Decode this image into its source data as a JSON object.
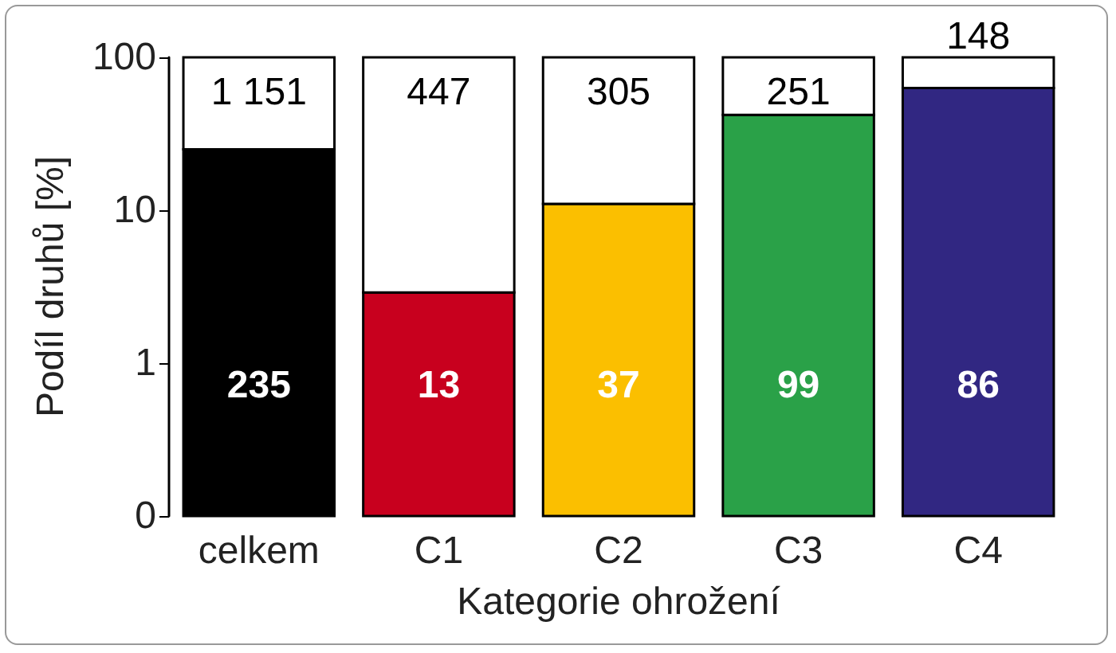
{
  "chart_data": {
    "type": "bar",
    "stacked": true,
    "log": true,
    "xlabel": "Kategorie ohrožení",
    "ylabel": "Podíl druhů [%]",
    "categories": [
      "celkem",
      "C1",
      "C2",
      "C3",
      "C4"
    ],
    "series": [
      {
        "colors": [
          "#000000",
          "#c8001e",
          "#fbbf00",
          "#2aa148",
          "#312782"
        ],
        "values": [
          25,
          2.9,
          11,
          42,
          63
        ]
      },
      {
        "color": "#ffffff",
        "values": [
          75,
          97.1,
          89,
          58,
          37
        ]
      }
    ],
    "annotations": [
      "235",
      "13",
      "37",
      "99",
      "86",
      "1 151",
      "447",
      "305",
      "251",
      "148"
    ],
    "ylim": [
      0.1,
      100
    ],
    "yticks": [
      {
        "value": 0.1,
        "label": "0"
      },
      1,
      10,
      100
    ],
    "grid": false
  }
}
